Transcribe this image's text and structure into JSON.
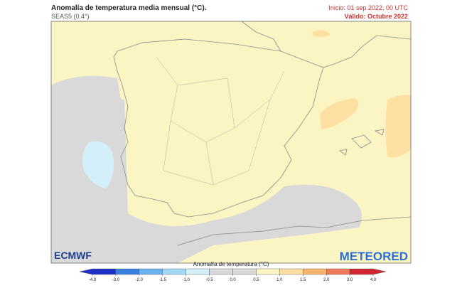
{
  "header": {
    "title": "Anomalía de temperatura media mensual (°C).",
    "subtitle": "SEAS5 (0.4°)",
    "init": "Inicio: 01 sep 2022, 00 UTC",
    "valid": "Válido: Octubre 2022"
  },
  "logos": {
    "left": "ECMWF",
    "right": "METEORED"
  },
  "colorbar": {
    "title": "Anomalía de temperatura (°C)",
    "ticks": [
      "-4.0",
      "-3.0",
      "-2.0",
      "-1.5",
      "-1.0",
      "-0.5",
      "0.0",
      "0.5",
      "1.0",
      "1.5",
      "2.0",
      "3.0",
      "4.0"
    ],
    "colors": [
      "#1c2fc8",
      "#3b7fe0",
      "#6cb2ee",
      "#a4d9f6",
      "#d3f0fa",
      "#d9d9d9",
      "#d9d9d9",
      "#fbf5c4",
      "#fde0a2",
      "#f7b66e",
      "#ee7a5c",
      "#cf2630"
    ]
  }
}
